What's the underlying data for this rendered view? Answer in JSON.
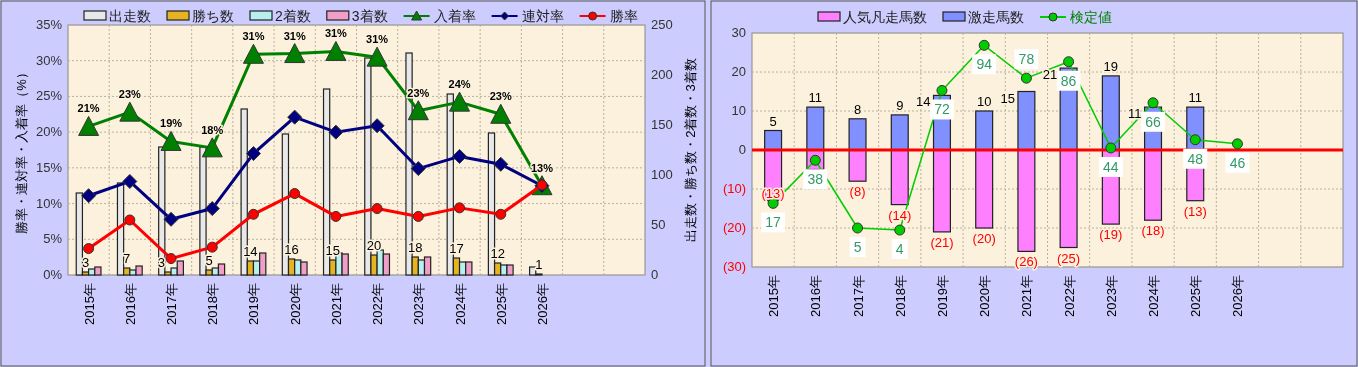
{
  "chart_data": [
    {
      "type": "bar",
      "categories": [
        "2015年",
        "2016年",
        "2017年",
        "2018年",
        "2019年",
        "2020年",
        "2021年",
        "2022年",
        "2023年",
        "2024年",
        "2025年",
        "2026年",
        null,
        null
      ],
      "ylabel": "勝率・連対率・入着率（%）",
      "y2label": "出走数・勝ち数・2着数・3着数",
      "ylim": [
        0,
        35
      ],
      "yticks": [
        {
          "value": 0,
          "label": "0%"
        },
        {
          "value": 5,
          "label": "5%"
        },
        {
          "value": 10,
          "label": "10%"
        },
        {
          "value": 15,
          "label": "15%"
        },
        {
          "value": 20,
          "label": "20%"
        },
        {
          "value": 25,
          "label": "25%"
        },
        {
          "value": 30,
          "label": "30%"
        },
        {
          "value": 35,
          "label": "35%"
        }
      ],
      "y2lim": [
        0,
        250
      ],
      "y2ticks": [
        0,
        50,
        100,
        150,
        200,
        250
      ],
      "grid": true,
      "legend": "top",
      "series": [
        {
          "name": "出走数",
          "color": "#e8e8e8",
          "axis": "y2",
          "values": [
            82,
            92,
            128,
            128,
            166,
            141,
            186,
            217,
            222,
            181,
            142,
            8,
            null,
            null
          ]
        },
        {
          "name": "勝ち数",
          "color": "#e6b422",
          "axis": "y2",
          "values": [
            3,
            7,
            3,
            5,
            14,
            16,
            15,
            20,
            18,
            17,
            12,
            1,
            null,
            null
          ],
          "value_labels": [
            "3",
            "7",
            "3",
            "5",
            "14",
            "16",
            "15",
            "20",
            "18",
            "17",
            "12",
            "1",
            null,
            null
          ]
        },
        {
          "name": "2着数",
          "color": "#b8f0f0",
          "axis": "y2",
          "values": [
            6,
            5,
            7,
            7,
            14,
            15,
            22,
            25,
            15,
            13,
            10,
            0,
            null,
            null
          ]
        },
        {
          "name": "3着数",
          "color": "#f0a0c8",
          "axis": "y2",
          "values": [
            8,
            9,
            14,
            11,
            22,
            13,
            21,
            21,
            18,
            13,
            10,
            0,
            null,
            null
          ]
        },
        {
          "name": "入着率",
          "type": "line",
          "color": "#008000",
          "marker": "triangle",
          "values": [
            20.8,
            22.8,
            18.7,
            17.8,
            30.9,
            31.0,
            31.3,
            30.5,
            23.0,
            24.2,
            22.5,
            12.5,
            null,
            null
          ],
          "value_labels": [
            "21%",
            "23%",
            "19%",
            "18%",
            "31%",
            "31%",
            "31%",
            "31%",
            "23%",
            "24%",
            "23%",
            "13%",
            null,
            null
          ]
        },
        {
          "name": "連対率",
          "type": "line",
          "color": "#000080",
          "marker": "diamond",
          "values": [
            11.1,
            13.1,
            7.8,
            9.3,
            17.0,
            22.1,
            20.0,
            20.9,
            14.9,
            16.6,
            15.5,
            12.5,
            null,
            null
          ]
        },
        {
          "name": "勝率",
          "type": "line",
          "color": "#ff0000",
          "marker": "circle",
          "values": [
            3.7,
            7.7,
            2.3,
            3.9,
            8.5,
            11.4,
            8.2,
            9.3,
            8.2,
            9.4,
            8.5,
            12.6,
            null,
            null
          ]
        }
      ]
    },
    {
      "type": "bar",
      "categories": [
        "2015年",
        "2016年",
        "2017年",
        "2018年",
        "2019年",
        "2020年",
        "2021年",
        "2022年",
        "2023年",
        "2024年",
        "2025年",
        "2026年",
        null,
        null
      ],
      "ylim": [
        -30,
        30
      ],
      "yticks": [
        {
          "value": -30,
          "label": "(30)"
        },
        {
          "value": -20,
          "label": "(20)"
        },
        {
          "value": -10,
          "label": "(10)"
        },
        0,
        10,
        20,
        30
      ],
      "y2lim": [
        -14,
        100
      ],
      "stacked": true,
      "grid": true,
      "legend": "top",
      "ref_lines": [
        {
          "axis": "y",
          "value": 0,
          "color": "#ff0000"
        }
      ],
      "series": [
        {
          "name": "人気凡走馬数",
          "color": "#ff80ff",
          "values": [
            -13,
            -5,
            -8,
            -14,
            -21,
            -20,
            -26,
            -25,
            -19,
            -18,
            -13,
            null,
            null,
            null
          ],
          "value_labels": [
            "(13)",
            null,
            "(8)",
            "(14)",
            "(21)",
            "(20)",
            "(26)",
            "(25)",
            "(19)",
            "(18)",
            "(13)",
            null,
            null,
            null
          ]
        },
        {
          "name": "激走馬数",
          "color": "#8090ff",
          "values": [
            5,
            11,
            8,
            9,
            14,
            10,
            15,
            21,
            19,
            11,
            11,
            null,
            null,
            null
          ],
          "value_labels": [
            "5",
            "11",
            "8",
            "9",
            "14",
            "10",
            "15",
            "21",
            "19",
            "11",
            "11",
            null,
            null,
            null
          ]
        },
        {
          "name": "検定値",
          "type": "line",
          "color": "#00cc00",
          "marker": "circle",
          "axis": "y2",
          "values": [
            17,
            38,
            5,
            4,
            72,
            94,
            78,
            86,
            44,
            66,
            48,
            46,
            null,
            null
          ],
          "value_labels": [
            "17",
            "38",
            "5",
            "4",
            "72",
            "94",
            "78",
            "86",
            "44",
            "66",
            "48",
            "46",
            null,
            null
          ]
        }
      ]
    }
  ]
}
